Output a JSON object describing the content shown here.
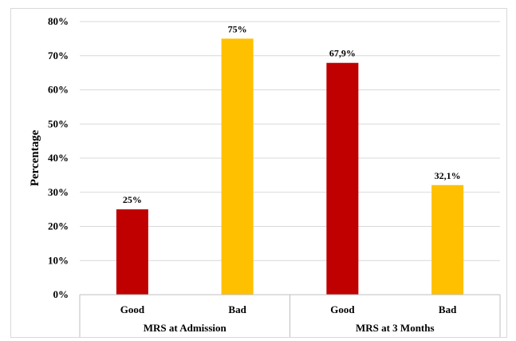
{
  "chart_data": {
    "type": "bar",
    "title": "",
    "xlabel": "",
    "ylabel": "Percentage",
    "ylim": [
      0,
      80
    ],
    "y_tick_labels": [
      "0%",
      "10%",
      "20%",
      "30%",
      "40%",
      "50%",
      "60%",
      "70%",
      "80%"
    ],
    "grid": "horizontal",
    "groups": [
      {
        "label": "MRS at Admission",
        "bars": [
          {
            "category": "Good",
            "value": 25,
            "label": "25%",
            "color": "#C00000"
          },
          {
            "category": "Bad",
            "value": 75,
            "label": "75%",
            "color": "#FFC000"
          }
        ]
      },
      {
        "label": "MRS at 3 Months",
        "bars": [
          {
            "category": "Good",
            "value": 67.9,
            "label": "67,9%",
            "color": "#C00000"
          },
          {
            "category": "Bad",
            "value": 32.1,
            "label": "32,1%",
            "color": "#FFC000"
          }
        ]
      }
    ]
  }
}
